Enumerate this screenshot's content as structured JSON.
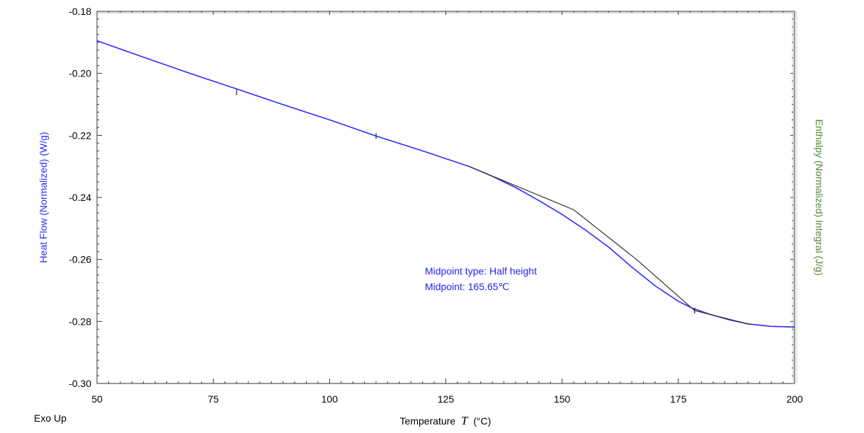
{
  "colors": {
    "heat_flow": "#2b2bff",
    "tangent": "#333333",
    "enthalpy_axis": "#4f8a2e",
    "frame": "#333333"
  },
  "chart_data": {
    "type": "line",
    "xlabel_prefix": "Temperature",
    "xlabel_symbol": "T",
    "xlabel_unit": "(°C)",
    "ylabel": "Heat Flow (Normalized)  (W/g)",
    "y2label": "Enthalpy (Normalized) Integral  (J/g)",
    "corner_label": "Exo Up",
    "xlim": [
      50,
      200
    ],
    "ylim": [
      -0.3,
      -0.18
    ],
    "xticks": [
      50,
      75,
      100,
      125,
      150,
      175,
      200
    ],
    "yticks": [
      -0.3,
      -0.28,
      -0.26,
      -0.24,
      -0.22,
      -0.2,
      -0.18
    ],
    "ytick_labels": [
      "-0.30",
      "-0.28",
      "-0.26",
      "-0.24",
      "-0.22",
      "-0.20",
      "-0.18"
    ],
    "grid": false,
    "series": [
      {
        "role": "heat_flow",
        "x": [
          50,
          60,
          70,
          80,
          90,
          100,
          110,
          120,
          130,
          135,
          140,
          145,
          150,
          155,
          160,
          165,
          170,
          175,
          178,
          182,
          186,
          190,
          195,
          200
        ],
        "y": [
          -0.1895,
          -0.1948,
          -0.2,
          -0.205,
          -0.2101,
          -0.215,
          -0.2202,
          -0.225,
          -0.23,
          -0.2332,
          -0.2368,
          -0.241,
          -0.2455,
          -0.2505,
          -0.256,
          -0.2625,
          -0.2685,
          -0.2735,
          -0.2757,
          -0.2778,
          -0.2795,
          -0.2808,
          -0.2816,
          -0.2818
        ]
      },
      {
        "role": "tangent",
        "x": [
          130,
          152.5,
          166,
          178.5,
          190.5
        ],
        "y": [
          -0.23,
          -0.244,
          -0.26,
          -0.2765,
          -0.281
        ]
      }
    ],
    "markers": [
      {
        "x": 80,
        "y": -0.2061
      },
      {
        "x": 110,
        "y": -0.2202
      },
      {
        "x": 178.5,
        "y": -0.2765
      }
    ],
    "annotations": [
      "Midpoint type: Half height",
      "Midpoint: 165.65℃"
    ]
  }
}
